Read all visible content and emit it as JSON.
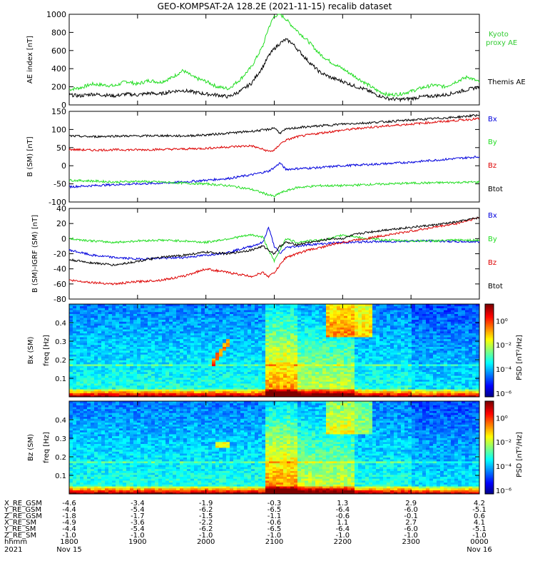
{
  "title": "GEO-KOMPSAT-2A 128.2E (2021-11-15) recalib dataset",
  "colors": {
    "black": "#000000",
    "blue": "#0000dd",
    "green": "#22dd22",
    "red": "#dd0000",
    "kyoto": "#33cc33"
  },
  "chart_data": [
    {
      "type": "line",
      "panel": "ae",
      "ylabel": "AE index [nT]",
      "ylim": [
        0,
        1000
      ],
      "yticks": [
        "0",
        "200",
        "400",
        "600",
        "800",
        "1000"
      ],
      "x": [
        1800,
        1810,
        1820,
        1830,
        1840,
        1850,
        1900,
        1910,
        1920,
        1930,
        1940,
        1950,
        2000,
        2010,
        2020,
        2030,
        2040,
        2050,
        2055,
        2100,
        2105,
        2110,
        2115,
        2120,
        2130,
        2140,
        2150,
        2200,
        2210,
        2220,
        2230,
        2240,
        2250,
        2300,
        2310,
        2320,
        2330,
        2340,
        2350,
        2400
      ],
      "series": [
        {
          "name": "Kyoto proxy AE",
          "color": "green",
          "values": [
            170,
            190,
            230,
            220,
            210,
            260,
            230,
            270,
            250,
            300,
            380,
            300,
            260,
            200,
            180,
            280,
            420,
            650,
            850,
            980,
            1000,
            950,
            880,
            820,
            700,
            560,
            470,
            400,
            320,
            240,
            160,
            110,
            120,
            150,
            190,
            220,
            200,
            260,
            310,
            250
          ]
        },
        {
          "name": "Themis AE",
          "color": "black",
          "values": [
            110,
            100,
            120,
            110,
            100,
            120,
            110,
            130,
            120,
            150,
            160,
            140,
            120,
            110,
            90,
            150,
            240,
            420,
            540,
            620,
            680,
            720,
            690,
            620,
            480,
            360,
            300,
            260,
            210,
            170,
            110,
            70,
            60,
            70,
            90,
            100,
            110,
            140,
            170,
            200
          ]
        }
      ]
    },
    {
      "type": "line",
      "panel": "bsm",
      "ylabel": "B (SM) [nT]",
      "ylim": [
        -100,
        150
      ],
      "yticks": [
        "-100",
        "-50",
        "0",
        "50",
        "100",
        "150"
      ],
      "x": [
        1800,
        1820,
        1840,
        1900,
        1920,
        1940,
        2000,
        2020,
        2040,
        2055,
        2100,
        2105,
        2110,
        2120,
        2140,
        2200,
        2220,
        2240,
        2300,
        2320,
        2340,
        2400
      ],
      "series": [
        {
          "name": "Bx",
          "color": "blue",
          "values": [
            -58,
            -55,
            -52,
            -50,
            -48,
            -45,
            -40,
            -35,
            -25,
            -15,
            -5,
            8,
            -10,
            -8,
            -5,
            0,
            3,
            6,
            10,
            15,
            20,
            25
          ]
        },
        {
          "name": "By",
          "color": "green",
          "values": [
            -40,
            -42,
            -45,
            -43,
            -45,
            -48,
            -50,
            -55,
            -65,
            -80,
            -85,
            -75,
            -70,
            -60,
            -55,
            -55,
            -52,
            -50,
            -48,
            -47,
            -46,
            -45
          ]
        },
        {
          "name": "Bz",
          "color": "red",
          "values": [
            45,
            43,
            44,
            44,
            45,
            46,
            48,
            52,
            55,
            40,
            42,
            60,
            70,
            80,
            90,
            98,
            105,
            110,
            115,
            120,
            125,
            130
          ]
        },
        {
          "name": "Btot",
          "color": "black",
          "values": [
            82,
            80,
            82,
            82,
            83,
            82,
            85,
            90,
            95,
            100,
            105,
            90,
            100,
            105,
            110,
            115,
            118,
            122,
            126,
            130,
            134,
            140
          ]
        }
      ]
    },
    {
      "type": "line",
      "panel": "digrf",
      "ylabel": "B (SM)-IGRF (SM) [nT]",
      "ylim": [
        -80,
        40
      ],
      "yticks": [
        "-80",
        "-60",
        "-40",
        "-20",
        "0",
        "20",
        "40"
      ],
      "x": [
        1800,
        1820,
        1840,
        1900,
        1920,
        1940,
        2000,
        2020,
        2040,
        2050,
        2055,
        2100,
        2105,
        2110,
        2120,
        2130,
        2140,
        2150,
        2200,
        2210,
        2220,
        2240,
        2300,
        2320,
        2340,
        2400
      ],
      "series": [
        {
          "name": "Bx",
          "color": "blue",
          "values": [
            -15,
            -22,
            -25,
            -27,
            -26,
            -25,
            -22,
            -18,
            -10,
            -5,
            15,
            -10,
            -20,
            -12,
            -10,
            -8,
            -7,
            -6,
            -5,
            -5,
            -4,
            -4,
            -3,
            -3,
            -4,
            -4
          ]
        },
        {
          "name": "By",
          "color": "green",
          "values": [
            0,
            -3,
            -5,
            -3,
            -2,
            -3,
            -5,
            0,
            5,
            2,
            -15,
            -30,
            -15,
            0,
            -5,
            -3,
            -2,
            0,
            5,
            3,
            0,
            -2,
            -3,
            -3,
            -2,
            -2
          ]
        },
        {
          "name": "Bz",
          "color": "red",
          "values": [
            -55,
            -58,
            -60,
            -57,
            -55,
            -50,
            -40,
            -45,
            -50,
            -45,
            -50,
            -45,
            -35,
            -25,
            -20,
            -15,
            -12,
            -8,
            -5,
            -2,
            0,
            5,
            10,
            15,
            20,
            28
          ]
        },
        {
          "name": "Btot",
          "color": "black",
          "values": [
            -28,
            -32,
            -35,
            -30,
            -25,
            -22,
            -18,
            -20,
            -15,
            -10,
            -15,
            -20,
            -10,
            -5,
            -8,
            -5,
            -3,
            0,
            0,
            5,
            8,
            12,
            15,
            18,
            22,
            28
          ]
        }
      ]
    },
    {
      "type": "heatmap",
      "panel": "bx_psd",
      "ylabel": "Bx (SM) freq [Hz]",
      "yticks": [
        "0.1",
        "0.2",
        "0.3",
        "0.4"
      ],
      "colorbar_label": "PSD [nT²/Hz]",
      "colorbar_ticks": [
        "10⁰",
        "10⁻²",
        "10⁻⁴",
        "10⁻⁶"
      ]
    },
    {
      "type": "heatmap",
      "panel": "bz_psd",
      "ylabel": "Bz (SM) freq [Hz]",
      "yticks": [
        "0.1",
        "0.2",
        "0.3",
        "0.4"
      ],
      "colorbar_label": "PSD [nT²/Hz]",
      "colorbar_ticks": [
        "10⁰",
        "10⁻²",
        "10⁻⁴",
        "10⁻⁶"
      ]
    }
  ],
  "ephemeris": {
    "labels": [
      "X_RE_GSM",
      "Y_RE_GSM",
      "Z_RE_GSM",
      "X_RE_SM",
      "Y_RE_SM",
      "Z_RE_SM",
      "hhmm",
      "2021"
    ],
    "columns": [
      [
        "-4.6",
        "-4.4",
        "-1.8",
        "-4.9",
        "-4.4",
        "-1.0",
        "1800",
        "Nov 15"
      ],
      [
        "-3.4",
        "-5.4",
        "-1.7",
        "-3.6",
        "-5.4",
        "-1.0",
        "1900",
        ""
      ],
      [
        "-1.9",
        "-6.2",
        "-1.5",
        "-2.2",
        "-6.2",
        "-1.0",
        "2000",
        ""
      ],
      [
        "-0.3",
        "-6.5",
        "-1.1",
        "-0.6",
        "-6.5",
        "-1.0",
        "2100",
        ""
      ],
      [
        "1.3",
        "-6.4",
        "-0.6",
        "1.1",
        "-6.4",
        "-1.0",
        "2200",
        ""
      ],
      [
        "2.9",
        "-6.0",
        "-0.1",
        "2.7",
        "-6.0",
        "-1.0",
        "2300",
        ""
      ],
      [
        "4.2",
        "-5.1",
        "0.6",
        "4.1",
        "-5.1",
        "-1.0",
        "0000",
        "Nov 16"
      ]
    ]
  }
}
